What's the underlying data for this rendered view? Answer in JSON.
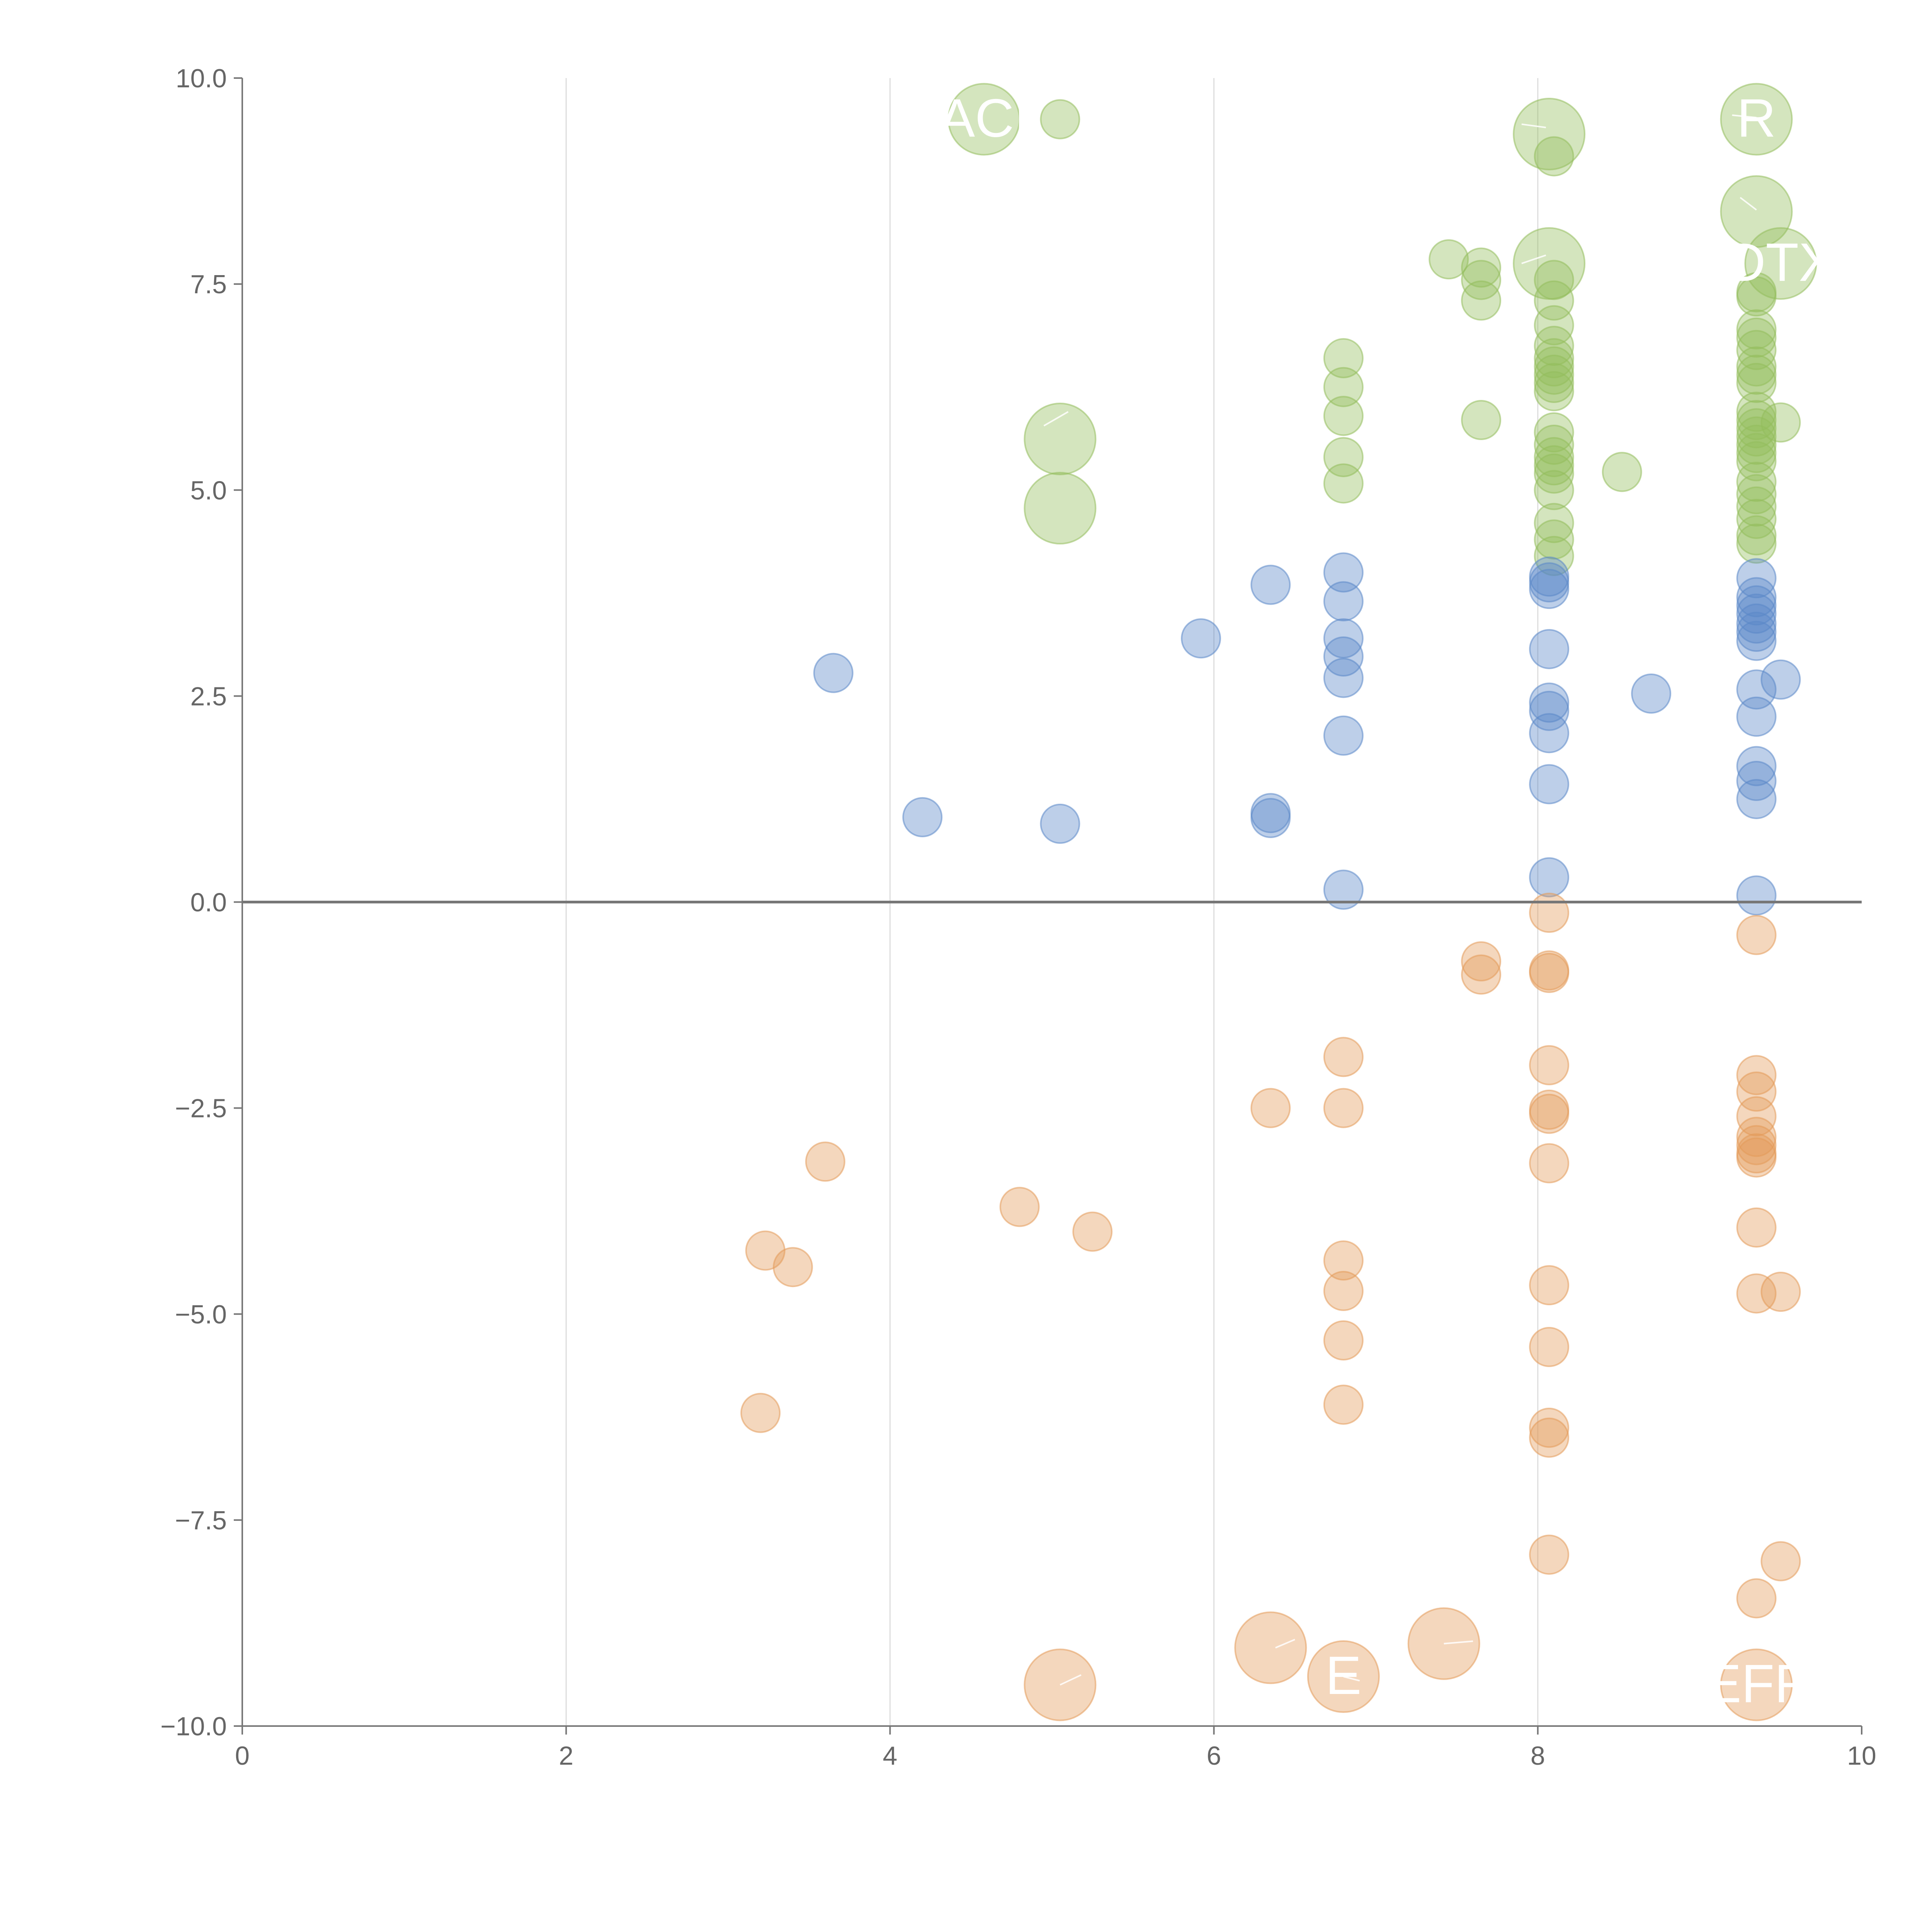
{
  "chart_data": {
    "type": "scatter",
    "title": "",
    "xlabel": "",
    "ylabel": "",
    "xlim": [
      0,
      10
    ],
    "ylim": [
      -10,
      10
    ],
    "x_ticks": [
      "0",
      "2",
      "4",
      "6",
      "8",
      "10"
    ],
    "y_ticks": [
      "10.0",
      "7.5",
      "5.0",
      "2.5",
      "0.0",
      "−2.5",
      "−5.0",
      "−7.5",
      "−10.0"
    ],
    "x_gridlines": [
      2,
      4,
      6,
      8
    ],
    "zero_line": true,
    "legend": "none",
    "colors": {
      "green": "#93bd5c",
      "blue": "#5b88c9",
      "orange": "#e39a5a"
    },
    "series": [
      {
        "name": "green",
        "color": "green",
        "points": [
          [
            5.05,
            9.5,
            "s"
          ],
          [
            8.1,
            9.05,
            "s"
          ],
          [
            7.45,
            7.8,
            "s"
          ],
          [
            7.65,
            7.7,
            "s"
          ],
          [
            7.65,
            7.55,
            "s"
          ],
          [
            7.65,
            7.3,
            "s"
          ],
          [
            7.65,
            5.85,
            "s"
          ],
          [
            6.8,
            6.6,
            "s"
          ],
          [
            6.8,
            6.25,
            "s"
          ],
          [
            6.8,
            5.9,
            "s"
          ],
          [
            6.8,
            5.4,
            "s"
          ],
          [
            6.8,
            5.08,
            "s"
          ],
          [
            8.1,
            7.55,
            "s"
          ],
          [
            8.1,
            7.3,
            "s"
          ],
          [
            8.1,
            7.0,
            "s"
          ],
          [
            8.1,
            6.75,
            "s"
          ],
          [
            8.1,
            6.6,
            "s"
          ],
          [
            8.1,
            6.5,
            "s"
          ],
          [
            8.1,
            6.4,
            "s"
          ],
          [
            8.1,
            6.3,
            "s"
          ],
          [
            8.1,
            6.2,
            "s"
          ],
          [
            8.1,
            5.7,
            "s"
          ],
          [
            8.1,
            5.55,
            "s"
          ],
          [
            8.1,
            5.4,
            "s"
          ],
          [
            8.1,
            5.3,
            "s"
          ],
          [
            8.1,
            5.2,
            "s"
          ],
          [
            8.1,
            5.0,
            "s"
          ],
          [
            8.1,
            4.6,
            "s"
          ],
          [
            8.1,
            4.4,
            "s"
          ],
          [
            8.1,
            4.2,
            "s"
          ],
          [
            8.52,
            5.22,
            "s"
          ],
          [
            9.35,
            7.4,
            "s"
          ],
          [
            9.35,
            7.35,
            "s"
          ],
          [
            9.35,
            6.95,
            "s"
          ],
          [
            9.35,
            6.85,
            "s"
          ],
          [
            9.35,
            6.7,
            "s"
          ],
          [
            9.35,
            6.5,
            "s"
          ],
          [
            9.35,
            6.4,
            "s"
          ],
          [
            9.35,
            6.3,
            "s"
          ],
          [
            9.35,
            5.95,
            "s"
          ],
          [
            9.35,
            5.85,
            "s"
          ],
          [
            9.35,
            5.75,
            "s"
          ],
          [
            9.35,
            5.65,
            "s"
          ],
          [
            9.35,
            5.55,
            "s"
          ],
          [
            9.35,
            5.45,
            "s"
          ],
          [
            9.35,
            5.35,
            "s"
          ],
          [
            9.35,
            5.1,
            "s"
          ],
          [
            9.35,
            4.95,
            "s"
          ],
          [
            9.35,
            4.8,
            "s"
          ],
          [
            9.35,
            4.65,
            "s"
          ],
          [
            9.35,
            4.45,
            "s"
          ],
          [
            9.35,
            4.35,
            "s"
          ],
          [
            9.5,
            5.82,
            "s"
          ],
          [
            4.58,
            9.5,
            "l"
          ],
          [
            8.07,
            9.32,
            "l"
          ],
          [
            9.35,
            9.5,
            "l"
          ],
          [
            9.35,
            8.38,
            "l"
          ],
          [
            8.07,
            7.75,
            "l"
          ],
          [
            9.5,
            7.75,
            "l"
          ],
          [
            5.05,
            5.62,
            "l"
          ],
          [
            5.05,
            4.78,
            "l"
          ]
        ]
      },
      {
        "name": "blue",
        "color": "blue",
        "points": [
          [
            3.65,
            2.78,
            "s"
          ],
          [
            4.2,
            1.03,
            "s"
          ],
          [
            5.05,
            0.95,
            "s"
          ],
          [
            5.92,
            3.2,
            "s"
          ],
          [
            6.35,
            3.85,
            "s"
          ],
          [
            6.35,
            1.08,
            "s"
          ],
          [
            6.35,
            1.02,
            "s"
          ],
          [
            6.8,
            4.0,
            "s"
          ],
          [
            6.8,
            3.65,
            "s"
          ],
          [
            6.8,
            3.2,
            "s"
          ],
          [
            6.8,
            2.98,
            "s"
          ],
          [
            6.8,
            2.72,
            "s"
          ],
          [
            6.8,
            2.02,
            "s"
          ],
          [
            6.8,
            0.15,
            "s"
          ],
          [
            8.07,
            3.95,
            "s"
          ],
          [
            8.07,
            3.88,
            "s"
          ],
          [
            8.07,
            3.8,
            "s"
          ],
          [
            8.07,
            3.07,
            "s"
          ],
          [
            8.07,
            2.42,
            "s"
          ],
          [
            8.07,
            2.32,
            "s"
          ],
          [
            8.07,
            2.05,
            "s"
          ],
          [
            8.07,
            1.43,
            "s"
          ],
          [
            8.07,
            0.3,
            "s"
          ],
          [
            8.7,
            2.53,
            "s"
          ],
          [
            9.35,
            3.93,
            "s"
          ],
          [
            9.35,
            3.7,
            "s"
          ],
          [
            9.35,
            3.6,
            "s"
          ],
          [
            9.35,
            3.5,
            "s"
          ],
          [
            9.35,
            3.38,
            "s"
          ],
          [
            9.35,
            3.28,
            "s"
          ],
          [
            9.35,
            3.17,
            "s"
          ],
          [
            9.35,
            2.58,
            "s"
          ],
          [
            9.35,
            2.25,
            "s"
          ],
          [
            9.35,
            1.65,
            "s"
          ],
          [
            9.35,
            1.47,
            "s"
          ],
          [
            9.35,
            1.25,
            "s"
          ],
          [
            9.35,
            0.08,
            "s"
          ],
          [
            9.5,
            2.7,
            "s"
          ]
        ]
      },
      {
        "name": "orange",
        "color": "orange",
        "points": [
          [
            3.2,
            -6.2,
            "s"
          ],
          [
            3.23,
            -4.23,
            "s"
          ],
          [
            3.4,
            -4.43,
            "s"
          ],
          [
            3.6,
            -3.15,
            "s"
          ],
          [
            4.8,
            -3.7,
            "s"
          ],
          [
            5.25,
            -4.0,
            "s"
          ],
          [
            6.35,
            -2.5,
            "s"
          ],
          [
            6.8,
            -1.88,
            "s"
          ],
          [
            6.8,
            -2.5,
            "s"
          ],
          [
            6.8,
            -4.35,
            "s"
          ],
          [
            6.8,
            -4.72,
            "s"
          ],
          [
            6.8,
            -5.32,
            "s"
          ],
          [
            6.8,
            -6.1,
            "s"
          ],
          [
            7.65,
            -0.72,
            "s"
          ],
          [
            7.65,
            -0.88,
            "s"
          ],
          [
            8.07,
            -0.13,
            "s"
          ],
          [
            8.07,
            -0.83,
            "s"
          ],
          [
            8.07,
            -0.86,
            "s"
          ],
          [
            8.07,
            -1.98,
            "s"
          ],
          [
            8.07,
            -2.52,
            "s"
          ],
          [
            8.07,
            -2.57,
            "s"
          ],
          [
            8.07,
            -3.17,
            "s"
          ],
          [
            8.07,
            -4.65,
            "s"
          ],
          [
            8.07,
            -5.4,
            "s"
          ],
          [
            8.07,
            -6.38,
            "s"
          ],
          [
            8.07,
            -6.5,
            "s"
          ],
          [
            8.07,
            -7.92,
            "s"
          ],
          [
            9.35,
            -0.4,
            "s"
          ],
          [
            9.35,
            -2.1,
            "s"
          ],
          [
            9.35,
            -2.3,
            "s"
          ],
          [
            9.35,
            -2.6,
            "s"
          ],
          [
            9.35,
            -2.85,
            "s"
          ],
          [
            9.35,
            -2.95,
            "s"
          ],
          [
            9.35,
            -3.05,
            "s"
          ],
          [
            9.35,
            -3.1,
            "s"
          ],
          [
            9.35,
            -3.95,
            "s"
          ],
          [
            9.35,
            -4.75,
            "s"
          ],
          [
            9.35,
            -8.45,
            "s"
          ],
          [
            9.5,
            -4.73,
            "s"
          ],
          [
            9.5,
            -8.0,
            "s"
          ],
          [
            5.05,
            -9.5,
            "l"
          ],
          [
            6.35,
            -9.05,
            "l"
          ],
          [
            6.8,
            -9.4,
            "l"
          ],
          [
            7.42,
            -9.0,
            "l"
          ],
          [
            9.35,
            -9.5,
            "l"
          ]
        ]
      }
    ],
    "annotations": [
      {
        "text": "ACI",
        "x": 4.58,
        "y": 9.5
      },
      {
        "text": "R",
        "x": 9.35,
        "y": 9.5
      },
      {
        "text": "DTX",
        "x": 9.5,
        "y": 7.75
      },
      {
        "text": "E",
        "x": 6.8,
        "y": -9.4
      },
      {
        "text": "EFF",
        "x": 9.35,
        "y": -9.5
      }
    ],
    "connectors": [
      [
        4.95,
        5.78,
        5.1,
        5.95
      ],
      [
        8.05,
        9.4,
        7.9,
        9.44
      ],
      [
        8.05,
        7.85,
        7.9,
        7.75
      ],
      [
        9.2,
        9.55,
        9.35,
        9.52
      ],
      [
        9.35,
        8.4,
        9.25,
        8.55
      ],
      [
        6.38,
        -9.05,
        6.5,
        -8.95
      ],
      [
        7.42,
        -9.0,
        7.6,
        -8.97
      ],
      [
        5.05,
        -9.5,
        5.18,
        -9.38
      ],
      [
        6.8,
        -9.4,
        6.9,
        -9.45
      ]
    ]
  }
}
